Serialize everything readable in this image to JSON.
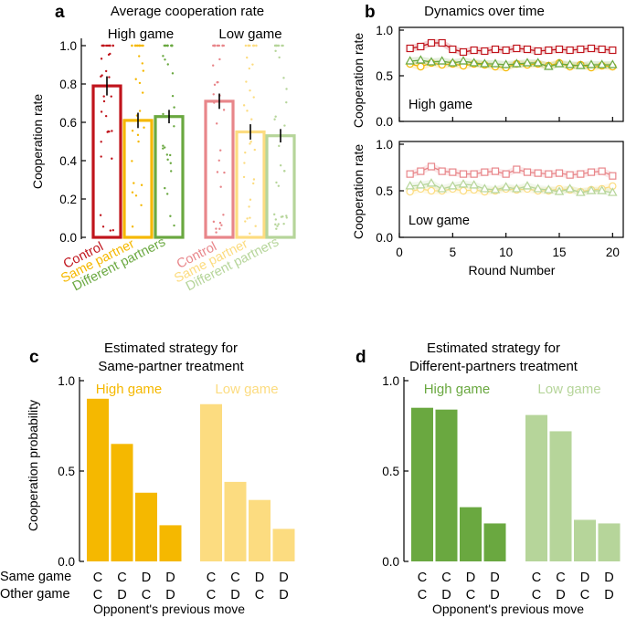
{
  "panels": {
    "a": {
      "label": "a",
      "title": "Average cooperation rate"
    },
    "b": {
      "label": "b",
      "title": "Dynamics over time"
    },
    "c": {
      "label": "c",
      "title_line1": "Estimated strategy for",
      "title_line2": "Same-partner treatment"
    },
    "d": {
      "label": "d",
      "title_line1": "Estimated strategy for",
      "title_line2": "Different-partners treatment"
    }
  },
  "colors": {
    "control_high": "#c0141c",
    "control_low": "#e8868a",
    "same_high": "#f5b800",
    "same_low": "#fcdc80",
    "diff_high": "#6aa840",
    "diff_low": "#b6d59a"
  },
  "chart_data": [
    {
      "type": "bar",
      "panel": "a",
      "title": "Average cooperation rate",
      "ylabel": "Cooperation rate",
      "ylim": [
        0,
        1.05
      ],
      "yticks": [
        0.0,
        0.2,
        0.4,
        0.6,
        0.8,
        1.0
      ],
      "ytick_labels": [
        "0.0",
        "0.2",
        "0.4",
        "0.6",
        "0.8",
        "1.0"
      ],
      "groups": [
        "High game",
        "Low game"
      ],
      "categories": [
        "Control",
        "Same partner",
        "Different partners"
      ],
      "series": [
        {
          "name": "High game",
          "values": [
            0.79,
            0.61,
            0.63
          ],
          "errors": [
            0.05,
            0.04,
            0.035
          ]
        },
        {
          "name": "Low game",
          "values": [
            0.71,
            0.55,
            0.53
          ],
          "errors": [
            0.04,
            0.04,
            0.035
          ]
        }
      ]
    },
    {
      "type": "line",
      "panel": "b",
      "title": "Dynamics over time",
      "xlabel": "Round Number",
      "ylabel": "Cooperation rate",
      "xlim": [
        0,
        21
      ],
      "ylim": [
        0,
        1.0
      ],
      "xticks": [
        0,
        5,
        10,
        15,
        20
      ],
      "xtick_labels": [
        "0",
        "5",
        "10",
        "15",
        "20"
      ],
      "yticks": [
        0,
        0.5,
        1.0
      ],
      "ytick_labels": [
        "0.0",
        "0.5",
        "1.0"
      ],
      "x": [
        1,
        2,
        3,
        4,
        5,
        6,
        7,
        8,
        9,
        10,
        11,
        12,
        13,
        14,
        15,
        16,
        17,
        18,
        19,
        20
      ],
      "subplots": [
        {
          "name": "High game",
          "series": [
            {
              "name": "Control",
              "marker": "square",
              "values": [
                0.8,
                0.82,
                0.86,
                0.86,
                0.79,
                0.76,
                0.78,
                0.77,
                0.79,
                0.78,
                0.8,
                0.79,
                0.77,
                0.78,
                0.79,
                0.78,
                0.79,
                0.8,
                0.79,
                0.78
              ]
            },
            {
              "name": "Same partner",
              "marker": "circle",
              "values": [
                0.63,
                0.6,
                0.64,
                0.62,
                0.63,
                0.61,
                0.63,
                0.62,
                0.6,
                0.59,
                0.63,
                0.62,
                0.63,
                0.61,
                0.64,
                0.6,
                0.62,
                0.59,
                0.61,
                0.6
              ]
            },
            {
              "name": "Different partners",
              "marker": "triangle",
              "values": [
                0.66,
                0.67,
                0.65,
                0.66,
                0.64,
                0.66,
                0.64,
                0.63,
                0.63,
                0.62,
                0.63,
                0.64,
                0.64,
                0.6,
                0.63,
                0.62,
                0.61,
                0.62,
                0.62,
                0.62
              ]
            }
          ]
        },
        {
          "name": "Low game",
          "series": [
            {
              "name": "Control",
              "marker": "square",
              "values": [
                0.68,
                0.71,
                0.76,
                0.71,
                0.7,
                0.68,
                0.68,
                0.7,
                0.71,
                0.68,
                0.73,
                0.7,
                0.69,
                0.68,
                0.69,
                0.67,
                0.68,
                0.7,
                0.71,
                0.66
              ]
            },
            {
              "name": "Same partner",
              "marker": "circle",
              "values": [
                0.49,
                0.52,
                0.5,
                0.5,
                0.52,
                0.5,
                0.51,
                0.49,
                0.5,
                0.52,
                0.51,
                0.52,
                0.5,
                0.5,
                0.52,
                0.51,
                0.49,
                0.51,
                0.52,
                0.55
              ]
            },
            {
              "name": "Different partners",
              "marker": "triangle",
              "values": [
                0.55,
                0.56,
                0.58,
                0.52,
                0.55,
                0.57,
                0.56,
                0.52,
                0.51,
                0.54,
                0.52,
                0.55,
                0.52,
                0.51,
                0.49,
                0.52,
                0.48,
                0.5,
                0.5,
                0.48
              ]
            }
          ]
        }
      ]
    },
    {
      "type": "bar",
      "panel": "c",
      "title": "Estimated strategy for Same-partner treatment",
      "ylabel": "Cooperation probability",
      "xlabel": "Opponent's previous move",
      "ylim": [
        0,
        1.0
      ],
      "yticks": [
        0,
        0.5,
        1.0
      ],
      "ytick_labels": [
        "0.0",
        "0.5",
        "1.0"
      ],
      "row_labels": [
        "Same game",
        "Other game"
      ],
      "categories": [
        "C/C",
        "C/D",
        "D/C",
        "D/D"
      ],
      "cat_top": [
        "C",
        "C",
        "D",
        "D"
      ],
      "cat_bottom": [
        "C",
        "D",
        "C",
        "D"
      ],
      "series": [
        {
          "name": "High game",
          "values": [
            0.9,
            0.65,
            0.38,
            0.2
          ]
        },
        {
          "name": "Low game",
          "values": [
            0.87,
            0.44,
            0.34,
            0.18
          ]
        }
      ]
    },
    {
      "type": "bar",
      "panel": "d",
      "title": "Estimated strategy for Different-partners treatment",
      "ylabel": "",
      "xlabel": "Opponent's previous move",
      "ylim": [
        0,
        1.0
      ],
      "yticks": [
        0,
        0.5,
        1.0
      ],
      "ytick_labels": [
        "0.0",
        "0.5",
        "1.0"
      ],
      "categories": [
        "C/C",
        "C/D",
        "D/C",
        "D/D"
      ],
      "cat_top": [
        "C",
        "C",
        "D",
        "D"
      ],
      "cat_bottom": [
        "C",
        "D",
        "C",
        "D"
      ],
      "series": [
        {
          "name": "High game",
          "values": [
            0.85,
            0.84,
            0.3,
            0.21
          ]
        },
        {
          "name": "Low game",
          "values": [
            0.81,
            0.72,
            0.23,
            0.21
          ]
        }
      ]
    }
  ]
}
